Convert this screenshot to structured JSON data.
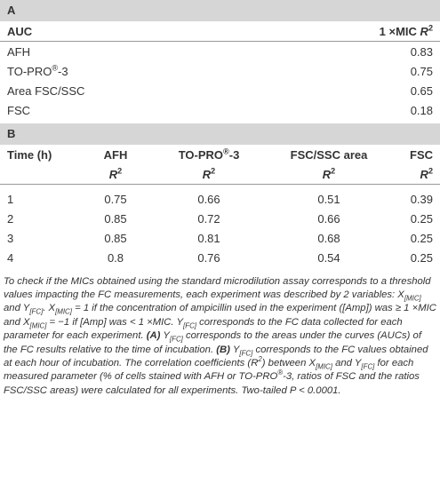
{
  "section_a": {
    "label": "A",
    "header": {
      "name": "AUC",
      "r2": [
        "1 ×MIC ",
        "R",
        "2"
      ]
    },
    "rows": [
      [
        "AFH",
        0.83
      ],
      [
        [
          "TO-PRO",
          "®",
          "-3"
        ],
        0.75
      ],
      [
        "Area FSC/SSC",
        0.65
      ],
      [
        "FSC",
        0.18
      ]
    ]
  },
  "section_b": {
    "label": "B",
    "header": [
      [
        "Time (h)",
        [
          "AFH"
        ],
        [
          [
            "TO-PRO",
            "®",
            "-3"
          ]
        ],
        [
          "FSC/SSC area"
        ],
        [
          "FSC"
        ]
      ],
      [
        [
          "R",
          "2"
        ],
        [
          "R",
          "2"
        ],
        [
          "R",
          "2"
        ],
        [
          "R",
          "2"
        ]
      ]
    ],
    "rows": [
      [
        1,
        0.75,
        0.66,
        0.51,
        0.39
      ],
      [
        2,
        0.85,
        0.72,
        0.66,
        0.25
      ],
      [
        3,
        0.85,
        0.81,
        0.68,
        0.25
      ],
      [
        4,
        0.8,
        0.76,
        0.54,
        0.25
      ]
    ]
  },
  "footnote": {
    "runs": [
      "To check if the MICs obtained using the standard microdilution assay corresponds to a threshold values impacting the FC measurements, each experiment was described by 2 variables: X",
      "[MIC]",
      " and Y",
      "[FC]",
      ". X",
      "[MIC]",
      " = 1 if the concentration of ampicillin used in the experiment ([Amp]) was ≥ 1 ×MIC and X",
      "[MIC]",
      " = −1 if [Amp] was < 1 ×MIC. Y",
      "[FC]",
      " corresponds to the FC data collected for each parameter for each experiment. ",
      "(A)",
      " Y",
      "[FC]",
      " corresponds to the areas under the curves (AUCs) of the FC results relative to the time of incubation. ",
      "(B)",
      " Y",
      "[FC]",
      " corresponds to the FC values obtained at each hour of incubation. The correlation coefficients (",
      "R",
      "2",
      ") between X",
      "[MIC]",
      " and Y",
      "[FC]",
      " for each measured parameter (% of cells stained with AFH or TO-PRO",
      "®",
      "-3, ratios of FSC and the ratios FSC/SSC areas) were calculated for all experiments. Two-tailed ",
      "P",
      " < 0.0001."
    ]
  }
}
